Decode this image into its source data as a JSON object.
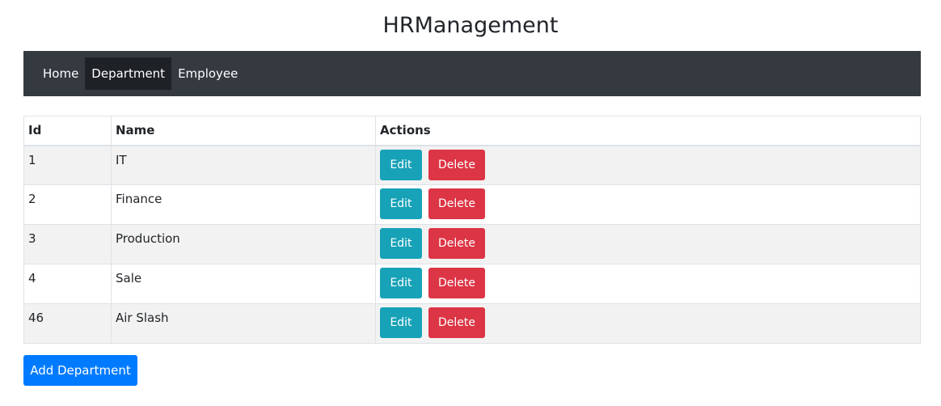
{
  "app": {
    "title": "HRManagement"
  },
  "nav": {
    "items": [
      {
        "label": "Home",
        "active": false
      },
      {
        "label": "Department",
        "active": true
      },
      {
        "label": "Employee",
        "active": false
      }
    ]
  },
  "table": {
    "headers": {
      "id": "Id",
      "name": "Name",
      "actions": "Actions"
    },
    "rows": [
      {
        "id": "1",
        "name": "IT",
        "edit_label": "Edit",
        "delete_label": "Delete"
      },
      {
        "id": "2",
        "name": "Finance",
        "edit_label": "Edit",
        "delete_label": "Delete"
      },
      {
        "id": "3",
        "name": "Production",
        "edit_label": "Edit",
        "delete_label": "Delete"
      },
      {
        "id": "4",
        "name": "Sale",
        "edit_label": "Edit",
        "delete_label": "Delete"
      },
      {
        "id": "46",
        "name": "Air Slash",
        "edit_label": "Edit",
        "delete_label": "Delete"
      }
    ]
  },
  "actions": {
    "add_label": "Add Department"
  },
  "colors": {
    "navbar_bg": "#343a40",
    "nav_active_bg": "#1e2226",
    "edit_btn": "#17a2b8",
    "delete_btn": "#dc3545",
    "add_btn": "#007bff",
    "row_striped": "#f2f2f2"
  }
}
